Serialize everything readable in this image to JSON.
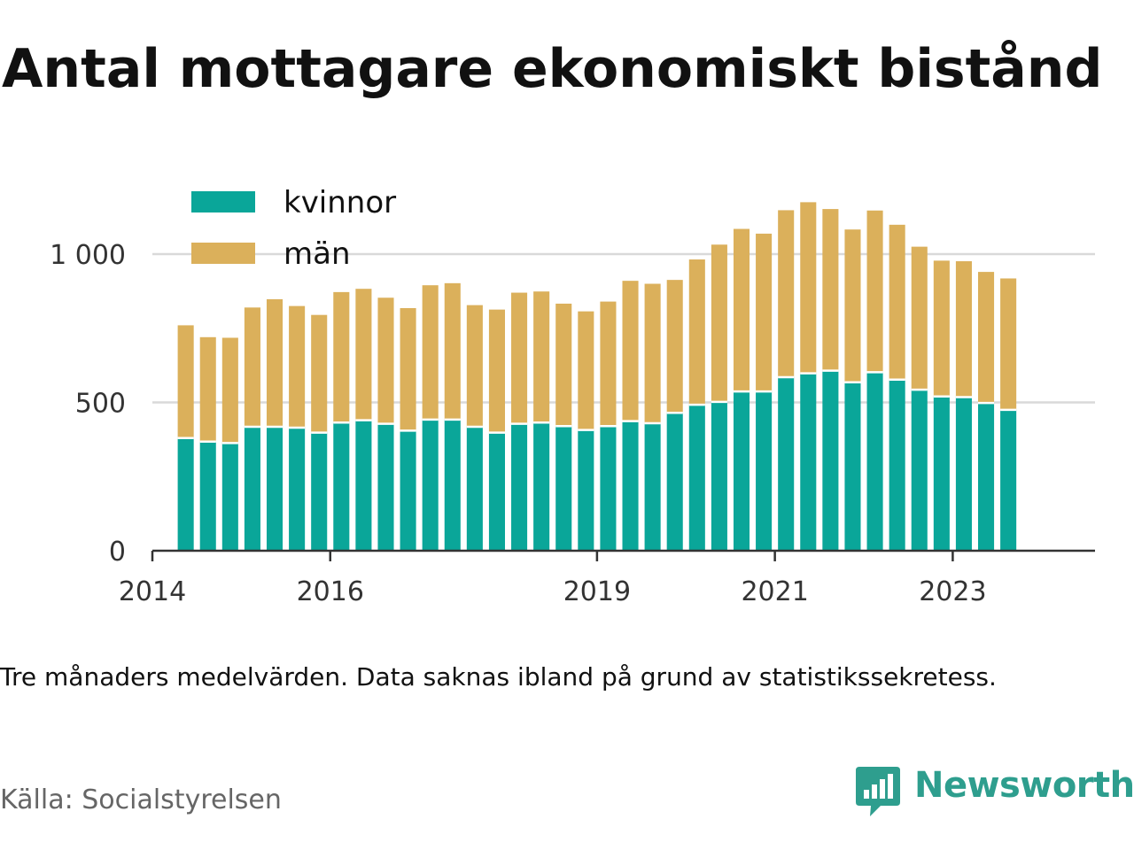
{
  "title": "Antal mottagare ekonomiskt bistånd",
  "note": "Tre månaders medelvärden. Data saknas ibland på grund av statistikssekretess.",
  "source": "Källa: Socialstyrelsen",
  "brand": {
    "name": "Newsworthy",
    "color": "#2e9e8e",
    "icon": "bar-chart-speech-bubble-icon"
  },
  "colors": {
    "kvinnor": "#0aa699",
    "man": "#dbb05b",
    "grid": "#d9d9d9",
    "axis": "#333333"
  },
  "chart_data": {
    "type": "bar",
    "stacked": true,
    "grid": "horizontal",
    "legend_position": "top-left",
    "ylim": [
      0,
      1200
    ],
    "yticks": [
      {
        "value": 0,
        "label": "0"
      },
      {
        "value": 500,
        "label": "500"
      },
      {
        "value": 1000,
        "label": "1 000"
      }
    ],
    "xlim": [
      2014.0,
      2024.6
    ],
    "xticks": [
      {
        "value": 2014,
        "label": "2014"
      },
      {
        "value": 2016,
        "label": "2016"
      },
      {
        "value": 2019,
        "label": "2019"
      },
      {
        "value": 2021,
        "label": "2021"
      },
      {
        "value": 2023,
        "label": "2023"
      }
    ],
    "x": [
      2014.375,
      2014.625,
      2014.875,
      2015.125,
      2015.375,
      2015.625,
      2015.875,
      2016.125,
      2016.375,
      2016.625,
      2016.875,
      2017.125,
      2017.375,
      2017.625,
      2017.875,
      2018.125,
      2018.375,
      2018.625,
      2018.875,
      2019.125,
      2019.375,
      2019.625,
      2019.875,
      2020.125,
      2020.375,
      2020.625,
      2020.875,
      2021.125,
      2021.375,
      2021.625,
      2021.875,
      2022.125,
      2022.375,
      2022.625,
      2022.875,
      2023.125,
      2023.375,
      2023.625
    ],
    "series": [
      {
        "name": "kvinnor",
        "key": "kvinnor",
        "values": [
          380,
          368,
          363,
          418,
          418,
          415,
          398,
          432,
          440,
          428,
          405,
          442,
          442,
          418,
          398,
          428,
          432,
          420,
          407,
          420,
          437,
          430,
          465,
          492,
          502,
          537,
          537,
          585,
          598,
          607,
          568,
          602,
          577,
          543,
          520,
          518,
          498,
          475
        ]
      },
      {
        "name": "män",
        "key": "man",
        "values": [
          380,
          352,
          355,
          402,
          430,
          410,
          397,
          440,
          443,
          425,
          413,
          453,
          460,
          410,
          415,
          442,
          442,
          413,
          400,
          420,
          473,
          470,
          448,
          490,
          530,
          548,
          532,
          563,
          577,
          545,
          515,
          545,
          522,
          482,
          458,
          458,
          442,
          443
        ]
      }
    ]
  }
}
